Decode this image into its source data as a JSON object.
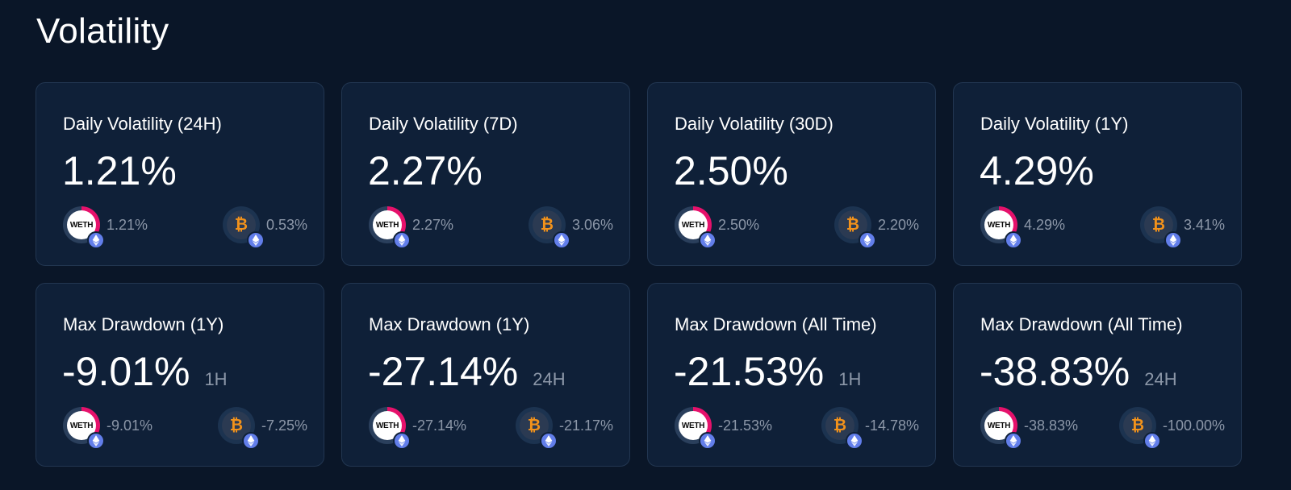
{
  "page": {
    "title": "Volatility"
  },
  "colors": {
    "background": "#0a1628",
    "card": "#0f2038",
    "card_border": "#223651",
    "muted_text": "#8c97a8",
    "weth_accent": "#e6116b",
    "btc_orange": "#f2921b",
    "eth_badge": "#627eea"
  },
  "tokens": {
    "a": {
      "symbol": "WETH",
      "icon": "weth-token-icon"
    },
    "b": {
      "symbol": "₿",
      "icon": "wbtc-token-icon"
    },
    "chain_badge_icon": "ethereum-icon"
  },
  "cards": [
    {
      "label": "Daily Volatility (24H)",
      "value": "1.21%",
      "window": "",
      "token_a_value": "1.21%",
      "token_b_value": "0.53%"
    },
    {
      "label": "Daily Volatility (7D)",
      "value": "2.27%",
      "window": "",
      "token_a_value": "2.27%",
      "token_b_value": "3.06%"
    },
    {
      "label": "Daily Volatility (30D)",
      "value": "2.50%",
      "window": "",
      "token_a_value": "2.50%",
      "token_b_value": "2.20%"
    },
    {
      "label": "Daily Volatility (1Y)",
      "value": "4.29%",
      "window": "",
      "token_a_value": "4.29%",
      "token_b_value": "3.41%"
    },
    {
      "label": "Max Drawdown (1Y)",
      "value": "-9.01%",
      "window": "1H",
      "token_a_value": "-9.01%",
      "token_b_value": "-7.25%"
    },
    {
      "label": "Max Drawdown (1Y)",
      "value": "-27.14%",
      "window": "24H",
      "token_a_value": "-27.14%",
      "token_b_value": "-21.17%"
    },
    {
      "label": "Max Drawdown (All Time)",
      "value": "-21.53%",
      "window": "1H",
      "token_a_value": "-21.53%",
      "token_b_value": "-14.78%"
    },
    {
      "label": "Max Drawdown (All Time)",
      "value": "-38.83%",
      "window": "24H",
      "token_a_value": "-38.83%",
      "token_b_value": "-100.00%"
    }
  ]
}
